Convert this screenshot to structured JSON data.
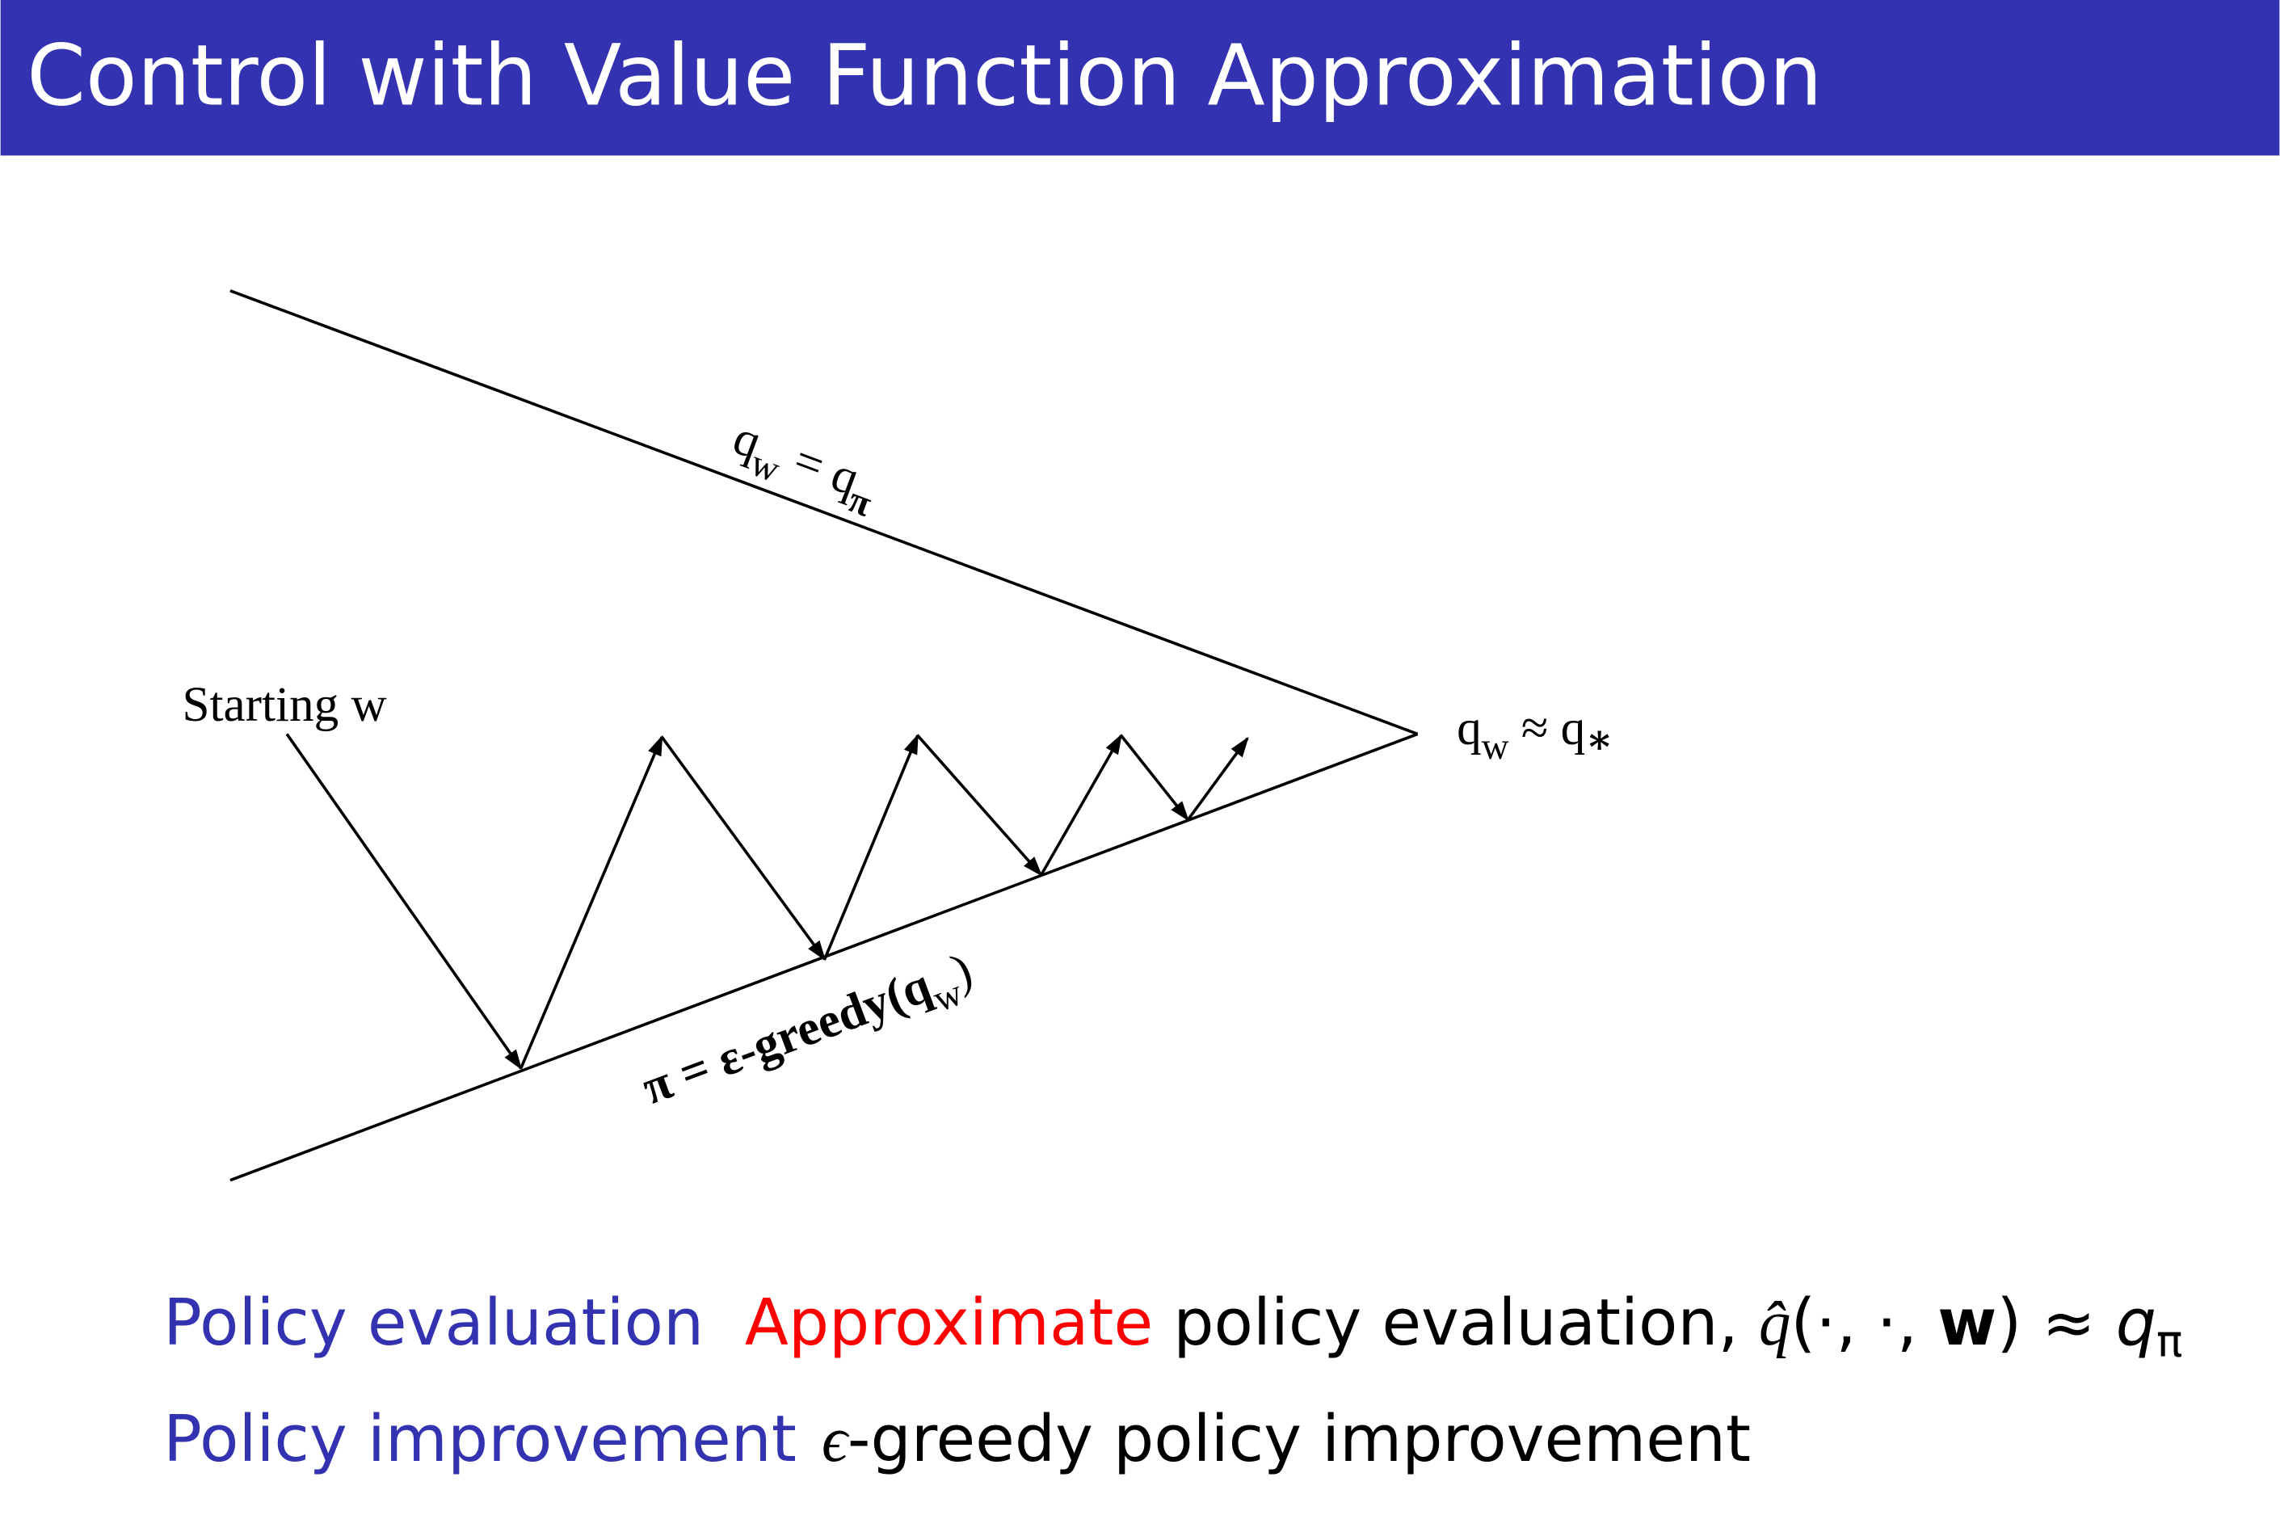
{
  "header": {
    "title": "Control with Value Function Approximation"
  },
  "diagram": {
    "start_label": "Starting w",
    "top_label": [
      "q",
      "w",
      " = q",
      "π"
    ],
    "bottom_label": [
      "π = ε-greedy(q",
      "w",
      ")"
    ],
    "limit_label": [
      "q",
      "w",
      " ≈ q",
      "∗"
    ]
  },
  "rows": [
    {
      "heading": "Policy evaluation",
      "parts": [
        "Approximate",
        " policy evaluation, ",
        "q̂",
        "(·, ·, ",
        "w",
        ") ≈ ",
        "q",
        "π"
      ]
    },
    {
      "heading": "Policy improvement",
      "parts": [
        "ϵ",
        "-greedy policy improvement"
      ]
    }
  ]
}
